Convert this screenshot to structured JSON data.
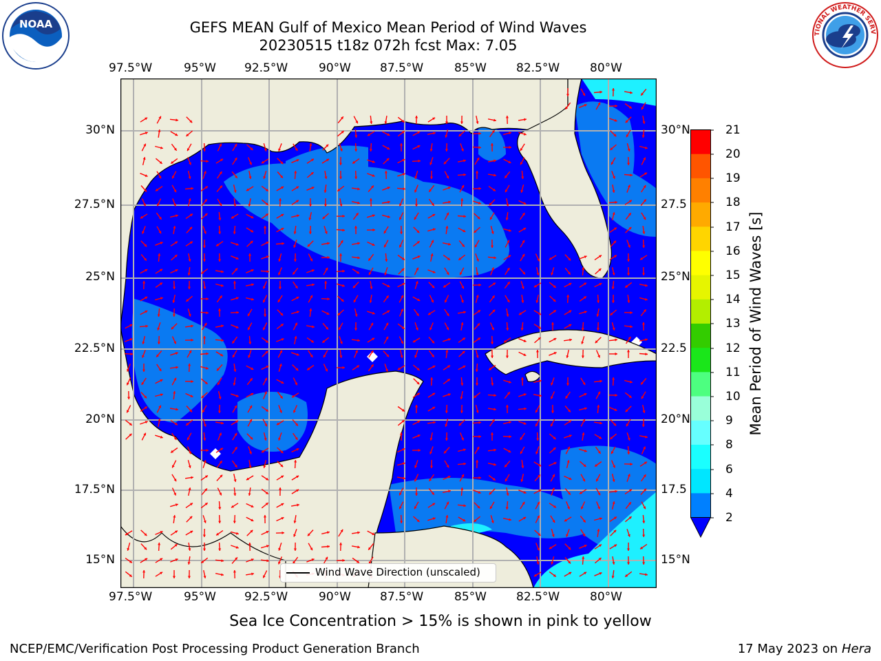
{
  "title": {
    "line1": "GEFS MEAN Gulf of Mexico Mean Period of Wind Waves",
    "line2": "20230515 t18z 072h fcst   Max: 7.05"
  },
  "lon_ticks": [
    "97.5°W",
    "95°W",
    "92.5°W",
    "90°W",
    "87.5°W",
    "85°W",
    "82.5°W",
    "80°W"
  ],
  "lat_ticks_left": [
    "30°N",
    "27.5°N",
    "25°N",
    "22.5°N",
    "20°N",
    "17.5°N",
    "15°N"
  ],
  "lat_ticks_right": [
    "30°N",
    "27.5",
    "25°N",
    "22.5",
    "20°N",
    "17.5",
    "15°N"
  ],
  "colorbar": {
    "label": "Mean Period of Wind Waves [s]",
    "ticks": [
      "21",
      "20",
      "19",
      "18",
      "17",
      "16",
      "15",
      "14",
      "13",
      "12",
      "11",
      "10",
      "9",
      "8",
      "6",
      "4",
      "2"
    ],
    "colors": [
      "#0000ff",
      "#0080ff",
      "#00e6ff",
      "#1affff",
      "#66ffff",
      "#99ffd9",
      "#4dff80",
      "#1ae61a",
      "#33cc00",
      "#66dd00",
      "#b3ee00",
      "#e6f500",
      "#ffff00",
      "#ffd500",
      "#ffaa00",
      "#ff8000",
      "#ff5500",
      "#ff2a00",
      "#ff0000"
    ]
  },
  "legend": {
    "label": "Wind Wave Direction (unscaled)"
  },
  "note": "Sea Ice Concentration > 15% is shown in pink to yellow",
  "footer": {
    "left": "NCEP/EMC/Verification Post Processing Product Generation Branch",
    "right_date": "17 May 2023 on",
    "right_host": "Hera"
  },
  "logos": {
    "left": "NOAA",
    "right": "NATIONAL WEATHER SERVICE"
  },
  "map_colors": {
    "land": "#eeeddc",
    "deep_blue": "#0000ff",
    "mid_blue": "#0a7af2",
    "cyan": "#1ef0ff",
    "arrow": "#ff0000"
  }
}
